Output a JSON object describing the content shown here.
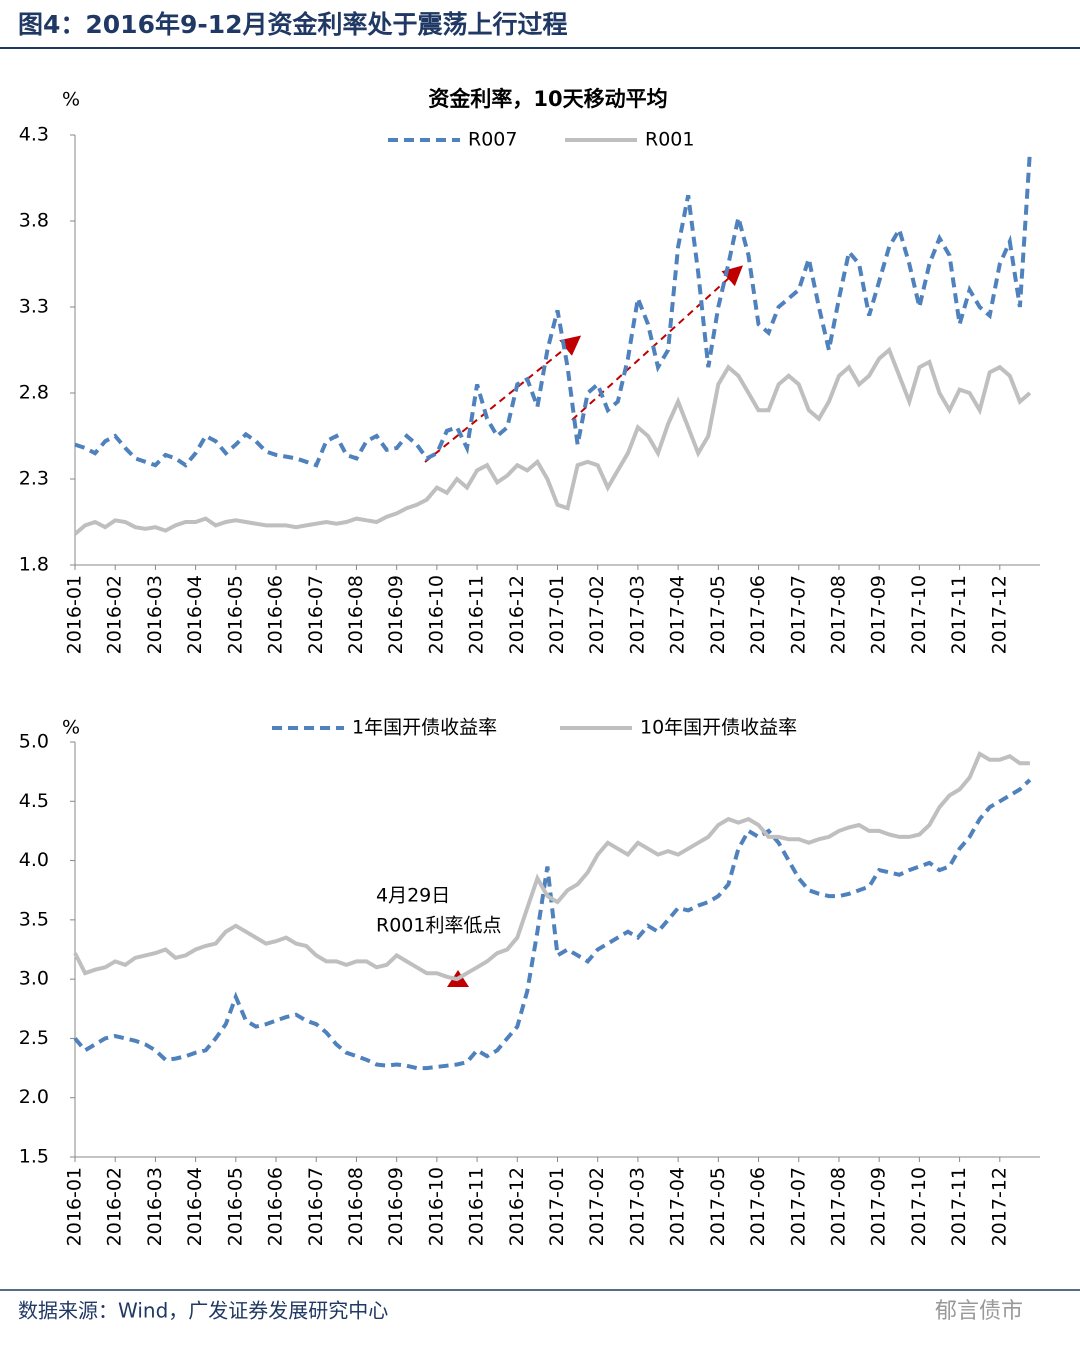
{
  "header": {
    "title": "图4：2016年9-12月资金利率处于震荡上行过程"
  },
  "source": "数据来源：Wind，广发证券发展研究中心",
  "watermark": "郁言债市",
  "chart_data": [
    {
      "type": "line",
      "title": "资金利率，10天移动平均",
      "y_label": "%",
      "categories": [
        "2016-01",
        null,
        null,
        null,
        "2016-02",
        null,
        null,
        null,
        "2016-03",
        null,
        null,
        null,
        "2016-04",
        null,
        null,
        null,
        "2016-05",
        null,
        null,
        null,
        "2016-06",
        null,
        null,
        null,
        "2016-07",
        null,
        null,
        null,
        "2016-08",
        null,
        null,
        null,
        "2016-09",
        null,
        null,
        null,
        "2016-10",
        null,
        null,
        null,
        "2016-11",
        null,
        null,
        null,
        "2016-12",
        null,
        null,
        null,
        "2017-01",
        null,
        null,
        null,
        "2017-02",
        null,
        null,
        null,
        "2017-03",
        null,
        null,
        null,
        "2017-04",
        null,
        null,
        null,
        "2017-05",
        null,
        null,
        null,
        "2017-06",
        null,
        null,
        null,
        "2017-07",
        null,
        null,
        null,
        "2017-08",
        null,
        null,
        null,
        "2017-09",
        null,
        null,
        null,
        "2017-10",
        null,
        null,
        null,
        "2017-11",
        null,
        null,
        null,
        "2017-12",
        null,
        null,
        null
      ],
      "series": [
        {
          "name": "R007",
          "color": "#4f81bd",
          "dash": true,
          "values": [
            2.5,
            2.48,
            2.45,
            2.52,
            2.55,
            2.48,
            2.42,
            2.4,
            2.38,
            2.44,
            2.42,
            2.38,
            2.45,
            2.55,
            2.52,
            2.45,
            2.5,
            2.56,
            2.52,
            2.46,
            2.44,
            2.43,
            2.42,
            2.4,
            2.38,
            2.52,
            2.55,
            2.44,
            2.42,
            2.52,
            2.55,
            2.47,
            2.48,
            2.55,
            2.5,
            2.42,
            2.45,
            2.58,
            2.6,
            2.48,
            2.85,
            2.65,
            2.55,
            2.6,
            2.85,
            2.88,
            2.72,
            3.05,
            3.28,
            2.95,
            2.5,
            2.8,
            2.85,
            2.7,
            2.75,
            3.0,
            3.35,
            3.2,
            2.95,
            3.05,
            3.65,
            3.95,
            3.5,
            2.95,
            3.3,
            3.55,
            3.82,
            3.6,
            3.2,
            3.15,
            3.3,
            3.35,
            3.4,
            3.58,
            3.3,
            3.05,
            3.35,
            3.62,
            3.55,
            3.25,
            3.45,
            3.65,
            3.75,
            3.55,
            3.3,
            3.55,
            3.7,
            3.6,
            3.2,
            3.4,
            3.3,
            3.25,
            3.55,
            3.68,
            3.3,
            4.2
          ]
        },
        {
          "name": "R001",
          "color": "#bfbfbf",
          "dash": false,
          "values": [
            1.98,
            2.03,
            2.05,
            2.02,
            2.06,
            2.05,
            2.02,
            2.01,
            2.02,
            2.0,
            2.03,
            2.05,
            2.05,
            2.07,
            2.03,
            2.05,
            2.06,
            2.05,
            2.04,
            2.03,
            2.03,
            2.03,
            2.02,
            2.03,
            2.04,
            2.05,
            2.04,
            2.05,
            2.07,
            2.06,
            2.05,
            2.08,
            2.1,
            2.13,
            2.15,
            2.18,
            2.25,
            2.22,
            2.3,
            2.25,
            2.35,
            2.38,
            2.28,
            2.32,
            2.38,
            2.35,
            2.4,
            2.3,
            2.15,
            2.13,
            2.38,
            2.4,
            2.38,
            2.25,
            2.35,
            2.45,
            2.6,
            2.55,
            2.45,
            2.62,
            2.75,
            2.6,
            2.45,
            2.55,
            2.85,
            2.95,
            2.9,
            2.8,
            2.7,
            2.7,
            2.85,
            2.9,
            2.85,
            2.7,
            2.65,
            2.75,
            2.9,
            2.95,
            2.85,
            2.9,
            3.0,
            3.05,
            2.9,
            2.75,
            2.95,
            2.98,
            2.8,
            2.7,
            2.82,
            2.8,
            2.7,
            2.92,
            2.95,
            2.9,
            2.75,
            2.8
          ]
        }
      ],
      "ylim": [
        1.8,
        4.3
      ],
      "yticks": [
        1.8,
        2.3,
        2.8,
        3.3,
        3.8,
        4.3
      ]
    },
    {
      "type": "line",
      "y_label": "%",
      "categories": [
        "2016-01",
        null,
        null,
        null,
        "2016-02",
        null,
        null,
        null,
        "2016-03",
        null,
        null,
        null,
        "2016-04",
        null,
        null,
        null,
        "2016-05",
        null,
        null,
        null,
        "2016-06",
        null,
        null,
        null,
        "2016-07",
        null,
        null,
        null,
        "2016-08",
        null,
        null,
        null,
        "2016-09",
        null,
        null,
        null,
        "2016-10",
        null,
        null,
        null,
        "2016-11",
        null,
        null,
        null,
        "2016-12",
        null,
        null,
        null,
        "2017-01",
        null,
        null,
        null,
        "2017-02",
        null,
        null,
        null,
        "2017-03",
        null,
        null,
        null,
        "2017-04",
        null,
        null,
        null,
        "2017-05",
        null,
        null,
        null,
        "2017-06",
        null,
        null,
        null,
        "2017-07",
        null,
        null,
        null,
        "2017-08",
        null,
        null,
        null,
        "2017-09",
        null,
        null,
        null,
        "2017-10",
        null,
        null,
        null,
        "2017-11",
        null,
        null,
        null,
        "2017-12",
        null,
        null,
        null
      ],
      "series": [
        {
          "name": "1年国开债收益率",
          "color": "#4f81bd",
          "dash": true,
          "values": [
            2.5,
            2.4,
            2.45,
            2.5,
            2.52,
            2.5,
            2.48,
            2.45,
            2.4,
            2.32,
            2.33,
            2.35,
            2.38,
            2.4,
            2.5,
            2.62,
            2.85,
            2.65,
            2.6,
            2.62,
            2.65,
            2.68,
            2.7,
            2.65,
            2.62,
            2.55,
            2.45,
            2.38,
            2.35,
            2.32,
            2.28,
            2.27,
            2.28,
            2.27,
            2.25,
            2.25,
            2.26,
            2.27,
            2.28,
            2.3,
            2.4,
            2.35,
            2.4,
            2.5,
            2.6,
            2.9,
            3.4,
            3.95,
            3.2,
            3.25,
            3.2,
            3.15,
            3.25,
            3.3,
            3.35,
            3.4,
            3.35,
            3.45,
            3.4,
            3.5,
            3.6,
            3.58,
            3.62,
            3.65,
            3.7,
            3.8,
            4.1,
            4.25,
            4.2,
            4.25,
            4.15,
            4.0,
            3.85,
            3.75,
            3.72,
            3.7,
            3.7,
            3.72,
            3.75,
            3.78,
            3.92,
            3.9,
            3.88,
            3.92,
            3.95,
            3.98,
            3.92,
            3.95,
            4.1,
            4.2,
            4.35,
            4.45,
            4.5,
            4.55,
            4.6,
            4.68
          ]
        },
        {
          "name": "10年国开债收益率",
          "color": "#bfbfbf",
          "dash": false,
          "values": [
            3.22,
            3.05,
            3.08,
            3.1,
            3.15,
            3.12,
            3.18,
            3.2,
            3.22,
            3.25,
            3.18,
            3.2,
            3.25,
            3.28,
            3.3,
            3.4,
            3.45,
            3.4,
            3.35,
            3.3,
            3.32,
            3.35,
            3.3,
            3.28,
            3.2,
            3.15,
            3.15,
            3.12,
            3.15,
            3.15,
            3.1,
            3.12,
            3.2,
            3.15,
            3.1,
            3.05,
            3.05,
            3.02,
            3.0,
            3.05,
            3.1,
            3.15,
            3.22,
            3.25,
            3.35,
            3.6,
            3.85,
            3.7,
            3.65,
            3.75,
            3.8,
            3.9,
            4.05,
            4.15,
            4.1,
            4.05,
            4.15,
            4.1,
            4.05,
            4.08,
            4.05,
            4.1,
            4.15,
            4.2,
            4.3,
            4.35,
            4.32,
            4.35,
            4.3,
            4.2,
            4.2,
            4.18,
            4.18,
            4.15,
            4.18,
            4.2,
            4.25,
            4.28,
            4.3,
            4.25,
            4.25,
            4.22,
            4.2,
            4.2,
            4.22,
            4.3,
            4.45,
            4.55,
            4.6,
            4.7,
            4.9,
            4.85,
            4.85,
            4.88,
            4.82,
            4.82
          ]
        }
      ],
      "ylim": [
        1.5,
        5.0
      ],
      "yticks": [
        1.5,
        {
          "value": 2,
          "label": "2.0"
        },
        2.5,
        {
          "value": 3,
          "label": "3.0"
        },
        3.5,
        {
          "value": 4,
          "label": "4.0"
        },
        4.5,
        {
          "value": 5,
          "label": "5.0"
        }
      ],
      "annotations": [
        "4月29日",
        "R001利率低点"
      ]
    }
  ]
}
